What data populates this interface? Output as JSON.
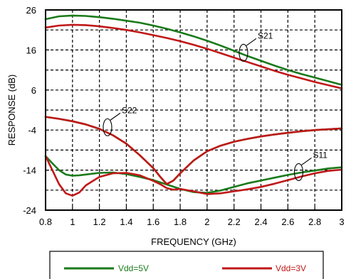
{
  "chart_data": {
    "type": "line",
    "title": "",
    "xlabel": "FREQUENCY (GHz)",
    "ylabel": "RESPONSE (dB)",
    "xlim": [
      0.8,
      3
    ],
    "ylim": [
      -24,
      26
    ],
    "xticks": [
      "0.8",
      "1",
      "1.2",
      "1.4",
      "1.6",
      "1.8",
      "2",
      "2.2",
      "2.4",
      "2.6",
      "2.8",
      "3"
    ],
    "yticks": [
      "-24",
      "-14",
      "-4",
      "6",
      "16",
      "26"
    ],
    "grid": true,
    "legend_position": "bottom",
    "series": [
      {
        "name": "Vdd=5V",
        "label": "S21",
        "color": "#1a7a1a",
        "x": [
          0.8,
          0.9,
          1.0,
          1.1,
          1.2,
          1.3,
          1.4,
          1.5,
          1.6,
          1.7,
          1.8,
          1.9,
          2.0,
          2.1,
          2.2,
          2.3,
          2.4,
          2.5,
          2.6,
          2.7,
          2.8,
          2.9,
          3.0
        ],
        "y": [
          23.7,
          24.4,
          24.6,
          24.5,
          24.2,
          23.8,
          23.3,
          22.8,
          22.1,
          21.3,
          20.4,
          19.4,
          18.3,
          17.1,
          15.8,
          14.5,
          13.3,
          12.1,
          11.0,
          10.0,
          9.1,
          8.2,
          7.3
        ]
      },
      {
        "name": "Vdd=3V",
        "label": "S21",
        "color": "#c01818",
        "x": [
          0.8,
          0.9,
          1.0,
          1.1,
          1.2,
          1.3,
          1.4,
          1.5,
          1.6,
          1.7,
          1.8,
          1.9,
          2.0,
          2.1,
          2.2,
          2.3,
          2.4,
          2.5,
          2.6,
          2.7,
          2.8,
          2.9,
          3.0
        ],
        "y": [
          21.6,
          22.1,
          22.3,
          22.2,
          21.9,
          21.5,
          21.0,
          20.4,
          19.7,
          19.0,
          18.2,
          17.3,
          16.3,
          15.2,
          14.1,
          13.0,
          11.9,
          10.8,
          9.8,
          8.9,
          8.0,
          7.2,
          6.4
        ]
      },
      {
        "name": "Vdd=5V",
        "label": "S11",
        "color": "#1a7a1a",
        "x": [
          0.8,
          0.85,
          0.9,
          0.95,
          1.0,
          1.05,
          1.1,
          1.2,
          1.3,
          1.4,
          1.5,
          1.6,
          1.7,
          1.8,
          1.9,
          2.0,
          2.1,
          2.2,
          2.3,
          2.4,
          2.5,
          2.6,
          2.7,
          2.8,
          2.9,
          3.0
        ],
        "y": [
          -10.5,
          -12.3,
          -14.0,
          -15.1,
          -15.4,
          -15.3,
          -15.1,
          -14.7,
          -14.6,
          -15.0,
          -15.7,
          -16.5,
          -17.6,
          -18.7,
          -19.5,
          -19.7,
          -19.1,
          -18.2,
          -17.3,
          -16.6,
          -15.9,
          -15.2,
          -14.6,
          -14.1,
          -13.6,
          -13.3
        ]
      },
      {
        "name": "Vdd=3V",
        "label": "S11",
        "color": "#c01818",
        "x": [
          0.8,
          0.85,
          0.9,
          0.95,
          1.0,
          1.05,
          1.1,
          1.2,
          1.3,
          1.4,
          1.5,
          1.6,
          1.65,
          1.7,
          1.75,
          1.8,
          1.9,
          2.0,
          2.1,
          2.2,
          2.3,
          2.4,
          2.5,
          2.6,
          2.7,
          2.8,
          2.9,
          3.0
        ],
        "y": [
          -10.5,
          -14.0,
          -17.5,
          -19.8,
          -20.4,
          -19.6,
          -17.8,
          -15.7,
          -14.8,
          -14.7,
          -15.3,
          -16.7,
          -17.5,
          -18.5,
          -18.9,
          -18.7,
          -19.3,
          -20.0,
          -19.8,
          -19.3,
          -18.8,
          -18.2,
          -17.4,
          -16.5,
          -15.6,
          -14.8,
          -14.2,
          -13.9
        ]
      },
      {
        "name": "Vdd=5V",
        "label": "S22",
        "color": "#1a7a1a",
        "x": [
          0.8,
          0.9,
          1.0,
          1.1,
          1.2,
          1.3,
          1.4,
          1.5,
          1.6,
          1.65,
          1.7,
          1.75,
          1.8,
          1.9,
          2.0,
          2.1,
          2.2,
          2.3,
          2.4,
          2.5,
          2.6,
          2.7,
          2.8,
          2.9,
          3.0
        ],
        "y": [
          -0.7,
          -1.2,
          -1.8,
          -2.6,
          -3.7,
          -5.3,
          -7.4,
          -10.3,
          -13.5,
          -15.6,
          -17.5,
          -16.6,
          -14.8,
          -11.6,
          -9.3,
          -7.9,
          -6.9,
          -6.2,
          -5.6,
          -5.1,
          -4.7,
          -4.3,
          -4.0,
          -3.8,
          -3.6
        ]
      },
      {
        "name": "Vdd=3V",
        "label": "S22",
        "color": "#c01818",
        "x": [
          0.8,
          0.9,
          1.0,
          1.1,
          1.2,
          1.3,
          1.4,
          1.5,
          1.6,
          1.65,
          1.7,
          1.75,
          1.8,
          1.9,
          2.0,
          2.1,
          2.2,
          2.3,
          2.4,
          2.5,
          2.6,
          2.7,
          2.8,
          2.9,
          3.0
        ],
        "y": [
          -0.7,
          -1.2,
          -1.8,
          -2.6,
          -3.7,
          -5.3,
          -7.4,
          -10.3,
          -13.5,
          -15.6,
          -17.5,
          -16.6,
          -14.8,
          -11.6,
          -9.3,
          -7.9,
          -6.9,
          -6.2,
          -5.6,
          -5.1,
          -4.7,
          -4.3,
          -4.0,
          -3.8,
          -3.6
        ]
      }
    ],
    "annotations": [
      {
        "text": "S21",
        "x": 2.27,
        "y": 15.3
      },
      {
        "text": "S22",
        "x": 1.26,
        "y": -3.3
      },
      {
        "text": "S11",
        "x": 2.68,
        "y": -14.5
      }
    ],
    "legend": [
      {
        "text": "Vdd=5V",
        "color": "#1a7a1a"
      },
      {
        "text": "Vdd=3V",
        "color": "#c01818"
      }
    ]
  }
}
